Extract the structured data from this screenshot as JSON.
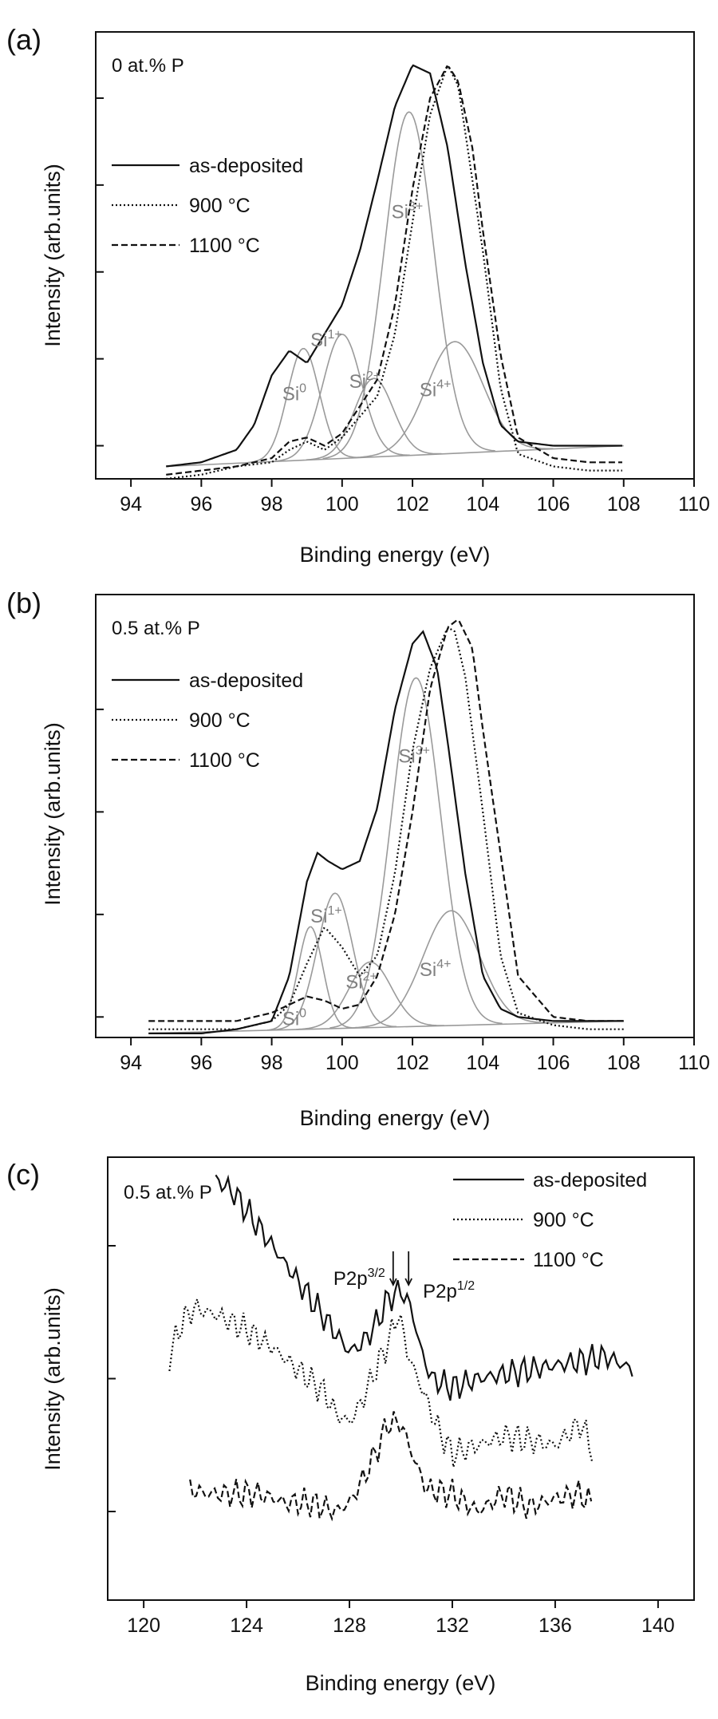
{
  "chart_data": [
    {
      "panel": "(a)",
      "type": "line",
      "annotation": "0 at.% P",
      "xlabel": "Binding energy (eV)",
      "ylabel": "Intensity (arb.units)",
      "xlim": [
        93,
        110
      ],
      "ylim": [
        0,
        1.08
      ],
      "x_ticks": [
        94,
        96,
        98,
        100,
        102,
        104,
        106,
        108,
        110
      ],
      "tick_labels": [
        "94",
        "96",
        "98",
        "100",
        "102",
        "104",
        "106",
        "108",
        "110"
      ],
      "grid": false,
      "legend_position": "upper-left",
      "series": [
        {
          "name": "as-deposited",
          "style": "solid",
          "x": [
            95,
            96,
            97,
            97.5,
            98,
            98.5,
            99,
            99.5,
            100,
            100.5,
            101,
            101.5,
            102,
            102.5,
            103,
            103.5,
            104,
            104.5,
            105,
            106,
            107,
            108
          ],
          "y": [
            0.03,
            0.04,
            0.07,
            0.13,
            0.25,
            0.31,
            0.28,
            0.35,
            0.42,
            0.55,
            0.72,
            0.9,
            1.0,
            0.98,
            0.8,
            0.52,
            0.28,
            0.13,
            0.09,
            0.08,
            0.08,
            0.08
          ]
        },
        {
          "name": "900 °C",
          "style": "dotted",
          "x": [
            95,
            96,
            97,
            98,
            98.5,
            99,
            99.5,
            100,
            101,
            101.5,
            102,
            102.5,
            103,
            103.3,
            103.6,
            104,
            104.5,
            105,
            106,
            107,
            108
          ],
          "y": [
            0.0,
            0.01,
            0.03,
            0.04,
            0.07,
            0.09,
            0.07,
            0.1,
            0.2,
            0.35,
            0.62,
            0.88,
            1.0,
            0.95,
            0.78,
            0.55,
            0.22,
            0.06,
            0.03,
            0.02,
            0.02
          ]
        },
        {
          "name": "1100 °C",
          "style": "dashed",
          "x": [
            95,
            96,
            97,
            98,
            98.5,
            99,
            99.5,
            100,
            101,
            101.5,
            102,
            102.5,
            103,
            103.3,
            103.7,
            104,
            104.5,
            105,
            106,
            107,
            108
          ],
          "y": [
            0.01,
            0.02,
            0.03,
            0.05,
            0.09,
            0.1,
            0.08,
            0.11,
            0.24,
            0.42,
            0.7,
            0.92,
            1.0,
            0.96,
            0.8,
            0.6,
            0.3,
            0.1,
            0.05,
            0.04,
            0.04
          ]
        }
      ],
      "components": [
        {
          "label": "Si",
          "sup": "0",
          "center": 98.9,
          "sigma": 0.45,
          "amp": 0.27,
          "label_x": 98.3,
          "label_y": 0.19
        },
        {
          "label": "Si",
          "sup": "1+",
          "center": 100.0,
          "sigma": 0.55,
          "amp": 0.3,
          "label_x": 99.1,
          "label_y": 0.32
        },
        {
          "label": "Si",
          "sup": "2+",
          "center": 100.9,
          "sigma": 0.55,
          "amp": 0.19,
          "label_x": 100.2,
          "label_y": 0.22
        },
        {
          "label": "Si",
          "sup": "3+",
          "center": 101.9,
          "sigma": 0.7,
          "amp": 0.83,
          "label_x": 101.4,
          "label_y": 0.63
        },
        {
          "label": "Si",
          "sup": "4+",
          "center": 103.2,
          "sigma": 0.8,
          "amp": 0.27,
          "label_x": 102.2,
          "label_y": 0.2
        }
      ],
      "component_baseline": {
        "x": [
          95,
          108
        ],
        "y": [
          0.03,
          0.08
        ]
      }
    },
    {
      "panel": "(b)",
      "type": "line",
      "annotation": "0.5 at.% P",
      "xlabel": "Binding energy (eV)",
      "ylabel": "Intensity (arb.units)",
      "xlim": [
        93,
        110
      ],
      "ylim": [
        0,
        1.08
      ],
      "x_ticks": [
        94,
        96,
        98,
        100,
        102,
        104,
        106,
        108,
        110
      ],
      "tick_labels": [
        "94",
        "96",
        "98",
        "100",
        "102",
        "104",
        "106",
        "108",
        "110"
      ],
      "grid": false,
      "legend_position": "upper-left",
      "series": [
        {
          "name": "as-deposited",
          "style": "solid",
          "x": [
            94.5,
            96,
            97,
            98,
            98.5,
            99,
            99.3,
            99.6,
            100,
            100.5,
            101,
            101.5,
            102,
            102.3,
            102.7,
            103,
            103.5,
            104,
            104.5,
            105,
            106,
            107,
            108
          ],
          "y": [
            0.01,
            0.01,
            0.02,
            0.04,
            0.15,
            0.38,
            0.45,
            0.43,
            0.41,
            0.43,
            0.56,
            0.8,
            0.96,
            0.99,
            0.9,
            0.72,
            0.4,
            0.15,
            0.07,
            0.05,
            0.04,
            0.04,
            0.04
          ]
        },
        {
          "name": "900 °C",
          "style": "dotted",
          "x": [
            94.5,
            96,
            97,
            98,
            98.5,
            99,
            99.5,
            100,
            100.5,
            101,
            101.5,
            102,
            102.5,
            103,
            103.2,
            103.5,
            104,
            104.5,
            105,
            106,
            107,
            108
          ],
          "y": [
            0.02,
            0.02,
            0.02,
            0.04,
            0.08,
            0.18,
            0.27,
            0.22,
            0.15,
            0.2,
            0.4,
            0.7,
            0.9,
            1.0,
            0.99,
            0.88,
            0.55,
            0.2,
            0.06,
            0.03,
            0.02,
            0.02
          ]
        },
        {
          "name": "1100 °C",
          "style": "dashed",
          "x": [
            94.5,
            96,
            97,
            98,
            98.5,
            99,
            99.5,
            100,
            100.5,
            101,
            101.5,
            102,
            102.5,
            103,
            103.3,
            103.7,
            104,
            104.5,
            105,
            106,
            107,
            108
          ],
          "y": [
            0.04,
            0.04,
            0.04,
            0.06,
            0.08,
            0.1,
            0.09,
            0.07,
            0.08,
            0.15,
            0.3,
            0.55,
            0.85,
            1.0,
            1.02,
            0.95,
            0.75,
            0.45,
            0.15,
            0.05,
            0.04,
            0.04
          ]
        }
      ],
      "components": [
        {
          "label": "Si",
          "sup": "0",
          "center": 99.1,
          "sigma": 0.35,
          "amp": 0.25,
          "label_x": 98.3,
          "label_y": 0.03
        },
        {
          "label": "Si",
          "sup": "1+",
          "center": 99.8,
          "sigma": 0.5,
          "amp": 0.33,
          "label_x": 99.1,
          "label_y": 0.28
        },
        {
          "label": "Si",
          "sup": "2+",
          "center": 100.8,
          "sigma": 0.6,
          "amp": 0.16,
          "label_x": 100.1,
          "label_y": 0.12
        },
        {
          "label": "Si",
          "sup": "3+",
          "center": 102.1,
          "sigma": 0.7,
          "amp": 0.85,
          "label_x": 101.6,
          "label_y": 0.67
        },
        {
          "label": "Si",
          "sup": "4+",
          "center": 103.1,
          "sigma": 0.8,
          "amp": 0.28,
          "label_x": 102.2,
          "label_y": 0.15
        }
      ],
      "component_baseline": {
        "x": [
          94.5,
          108
        ],
        "y": [
          0.01,
          0.04
        ]
      }
    },
    {
      "panel": "(c)",
      "type": "line",
      "annotation": "0.5 at.% P",
      "xlabel": "Binding energy (eV)",
      "ylabel": "Intensity (arb.units)",
      "xlim": [
        118.6,
        141.4
      ],
      "ylim": [
        0,
        1.0
      ],
      "x_ticks": [
        120,
        124,
        128,
        132,
        136,
        140
      ],
      "tick_labels": [
        "120",
        "124",
        "128",
        "132",
        "136",
        "140"
      ],
      "grid": false,
      "legend_position": "upper-right",
      "series": [
        {
          "name": "as-deposited",
          "style": "solid",
          "x": [
            122.8,
            123.5,
            124.5,
            125.5,
            126.5,
            127.5,
            128.0,
            128.5,
            129.0,
            129.5,
            130.0,
            130.4,
            130.8,
            131.2,
            132,
            133,
            134,
            135,
            136,
            137,
            138,
            139
          ],
          "y": [
            0.95,
            0.92,
            0.84,
            0.76,
            0.68,
            0.6,
            0.56,
            0.58,
            0.62,
            0.68,
            0.7,
            0.66,
            0.56,
            0.5,
            0.48,
            0.5,
            0.51,
            0.52,
            0.53,
            0.54,
            0.55,
            0.52
          ]
        },
        {
          "name": "900 °C",
          "style": "dotted",
          "x": [
            121,
            121.5,
            122,
            123,
            124,
            125,
            126,
            127,
            127.5,
            128,
            128.5,
            129,
            129.5,
            129.9,
            130.3,
            130.8,
            131.5,
            132,
            133,
            134,
            135,
            136,
            137,
            137.5
          ],
          "y": [
            0.55,
            0.63,
            0.66,
            0.64,
            0.61,
            0.57,
            0.52,
            0.47,
            0.42,
            0.4,
            0.45,
            0.52,
            0.58,
            0.65,
            0.55,
            0.48,
            0.38,
            0.33,
            0.35,
            0.37,
            0.36,
            0.35,
            0.4,
            0.33
          ]
        },
        {
          "name": "1100 °C",
          "style": "dashed",
          "x": [
            121.8,
            122.5,
            123.5,
            124.5,
            125.5,
            126.5,
            127.5,
            128.0,
            128.5,
            129,
            129.5,
            130,
            130.5,
            131,
            132,
            133,
            134,
            135,
            136,
            137,
            137.5
          ],
          "y": [
            0.25,
            0.24,
            0.24,
            0.24,
            0.22,
            0.22,
            0.2,
            0.22,
            0.27,
            0.33,
            0.4,
            0.4,
            0.32,
            0.25,
            0.24,
            0.2,
            0.24,
            0.21,
            0.23,
            0.24,
            0.21
          ]
        }
      ],
      "peak_labels": [
        {
          "text": "P2p",
          "sup": "3/2",
          "arrow_x": 129.7
        },
        {
          "text": "P2p",
          "sup": "1/2",
          "arrow_x": 130.3
        }
      ]
    }
  ]
}
